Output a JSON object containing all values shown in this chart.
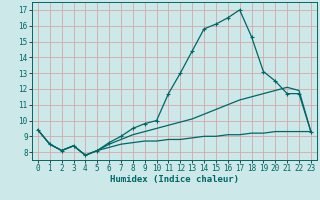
{
  "xlabel": "Humidex (Indice chaleur)",
  "background_color": "#cce8e8",
  "grid_color": "#d4a8a8",
  "line_color": "#006666",
  "xlim": [
    -0.5,
    23.5
  ],
  "ylim": [
    7.5,
    17.5
  ],
  "xticks": [
    0,
    1,
    2,
    3,
    4,
    5,
    6,
    7,
    8,
    9,
    10,
    11,
    12,
    13,
    14,
    15,
    16,
    17,
    18,
    19,
    20,
    21,
    22,
    23
  ],
  "yticks": [
    8,
    9,
    10,
    11,
    12,
    13,
    14,
    15,
    16,
    17
  ],
  "curve1_x": [
    0,
    1,
    2,
    3,
    4,
    5,
    6,
    7,
    8,
    9,
    10,
    11,
    12,
    13,
    14,
    15,
    16,
    17,
    18,
    19,
    20,
    21,
    22,
    23
  ],
  "curve1_y": [
    9.4,
    8.5,
    8.1,
    8.4,
    7.8,
    8.1,
    8.6,
    9.0,
    9.5,
    9.8,
    10.0,
    11.7,
    13.0,
    14.4,
    15.8,
    16.1,
    16.5,
    17.0,
    15.3,
    13.1,
    12.5,
    11.7,
    11.7,
    9.3
  ],
  "curve2_x": [
    0,
    1,
    2,
    3,
    4,
    5,
    6,
    7,
    8,
    9,
    10,
    11,
    12,
    13,
    14,
    15,
    16,
    17,
    18,
    19,
    20,
    21,
    22,
    23
  ],
  "curve2_y": [
    9.4,
    8.5,
    8.1,
    8.4,
    7.8,
    8.1,
    8.3,
    8.5,
    8.6,
    8.7,
    8.7,
    8.8,
    8.8,
    8.9,
    9.0,
    9.0,
    9.1,
    9.1,
    9.2,
    9.2,
    9.3,
    9.3,
    9.3,
    9.3
  ],
  "curve3_x": [
    0,
    1,
    2,
    3,
    4,
    5,
    6,
    7,
    8,
    9,
    10,
    11,
    12,
    13,
    14,
    15,
    16,
    17,
    18,
    19,
    20,
    21,
    22,
    23
  ],
  "curve3_y": [
    9.4,
    8.5,
    8.1,
    8.4,
    7.8,
    8.1,
    8.5,
    8.8,
    9.1,
    9.3,
    9.5,
    9.7,
    9.9,
    10.1,
    10.4,
    10.7,
    11.0,
    11.3,
    11.5,
    11.7,
    11.9,
    12.1,
    11.9,
    9.3
  ]
}
